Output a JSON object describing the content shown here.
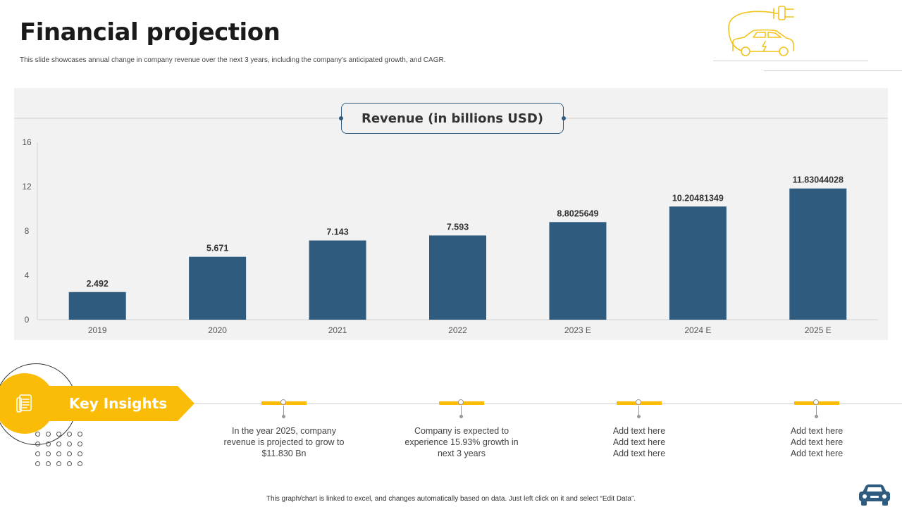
{
  "header": {
    "title": "Financial projection",
    "subtitle": "This slide showcases annual change in company revenue over the next 3 years, including the company's anticipated growth, and CAGR."
  },
  "icons": {
    "top_right": "electric-car-plug-icon",
    "insights": "document-icon",
    "bottom_right": "car-icon"
  },
  "colors": {
    "bar": "#2f5b7f",
    "accent": "#fbbc07",
    "panel": "#f2f2f2"
  },
  "chart_data": {
    "type": "bar",
    "title": "Revenue (in billions USD)",
    "categories": [
      "2019",
      "2020",
      "2021",
      "2022",
      "2023 E",
      "2024 E",
      "2025 E"
    ],
    "values": [
      2.492,
      5.671,
      7.143,
      7.593,
      8.8025649,
      10.20481349,
      11.83044028
    ],
    "value_labels": [
      "2.492",
      "5.671",
      "7.143",
      "7.593",
      "8.8025649",
      "10.20481349",
      "11.83044028"
    ],
    "ylim": [
      0,
      16
    ],
    "yticks": [
      "0",
      "4",
      "8",
      "12",
      "16"
    ],
    "xlabel": "",
    "ylabel": "",
    "grid": false,
    "legend": "none"
  },
  "insights": {
    "label": "Key Insights",
    "items": [
      {
        "lines": [
          "In the year 2025, company",
          "revenue  is projected to grow to",
          "$11.830 Bn"
        ]
      },
      {
        "lines": [
          "Company is expected to",
          "experience 15.93% growth in",
          "next 3 years"
        ]
      },
      {
        "lines": [
          "Add text here",
          "Add text here",
          "Add text here"
        ]
      },
      {
        "lines": [
          "Add text here",
          "Add text here",
          "Add text here"
        ]
      }
    ]
  },
  "footer": {
    "note": "This graph/chart is linked to excel, and changes automatically based on data. Just left click on it and select “Edit Data”."
  }
}
